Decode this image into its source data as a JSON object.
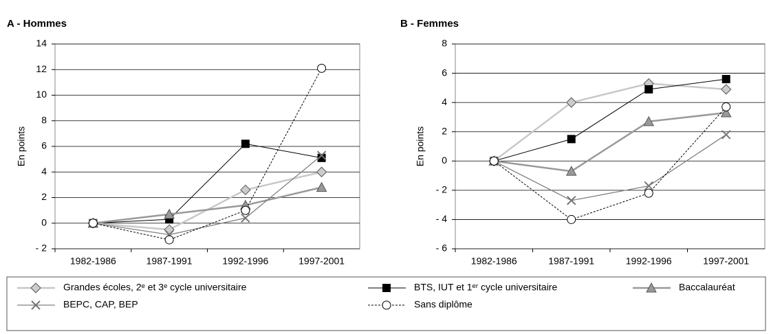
{
  "chart_data": [
    {
      "type": "line",
      "title": "A - Hommes",
      "y_label": "En points",
      "categories": [
        "1982-1986",
        "1987-1991",
        "1992-1996",
        "1997-2001"
      ],
      "ylim": [
        -2,
        14
      ],
      "yticks": [
        {
          "value": -2,
          "label": "- 2"
        },
        0,
        2,
        4,
        6,
        8,
        10,
        12,
        14
      ],
      "grid": true,
      "series": [
        {
          "name": "Grandes écoles, 2ᵉ et 3ᵉ cycle universitaire",
          "color": "#c8c8c8",
          "marker": "diamond",
          "values": [
            0,
            -0.5,
            2.6,
            4.0
          ]
        },
        {
          "name": "BTS, IUT et 1ᵉʳ cycle universitaire",
          "color": "#000000",
          "marker": "square",
          "values": [
            0,
            0.3,
            6.2,
            5.1
          ]
        },
        {
          "name": "Baccalauréat",
          "color": "#999999",
          "marker": "triangle",
          "values": [
            0,
            0.7,
            1.4,
            2.8
          ]
        },
        {
          "name": "BEPC, CAP, BEP",
          "color": "#808080",
          "marker": "x",
          "values": [
            0,
            -0.9,
            0.4,
            5.3
          ]
        },
        {
          "name": "Sans diplôme",
          "color": "#000000",
          "marker": "circle",
          "dashed": true,
          "values": [
            0,
            -1.3,
            1.0,
            12.1
          ]
        }
      ]
    },
    {
      "type": "line",
      "title": "B - Femmes",
      "y_label": "En points",
      "categories": [
        "1982-1986",
        "1987-1991",
        "1992-1996",
        "1997-2001"
      ],
      "ylim": [
        -6,
        8
      ],
      "yticks": [
        {
          "value": -6,
          "label": "- 6"
        },
        {
          "value": -4,
          "label": "- 4"
        },
        {
          "value": -2,
          "label": "- 2"
        },
        0,
        2,
        4,
        6,
        8
      ],
      "grid": true,
      "series": [
        {
          "color": "#c8c8c8",
          "marker": "diamond",
          "values": [
            0,
            4.0,
            5.3,
            4.9
          ]
        },
        {
          "color": "#000000",
          "marker": "square",
          "values": [
            0,
            1.5,
            4.9,
            5.6
          ]
        },
        {
          "color": "#999999",
          "marker": "triangle",
          "values": [
            0,
            -0.7,
            2.7,
            3.3
          ]
        },
        {
          "color": "#808080",
          "marker": "x",
          "values": [
            0,
            -2.7,
            -1.7,
            1.8
          ]
        },
        {
          "color": "#000000",
          "marker": "circle",
          "dashed": true,
          "values": [
            0,
            -4.0,
            -2.2,
            3.7
          ]
        }
      ]
    }
  ]
}
